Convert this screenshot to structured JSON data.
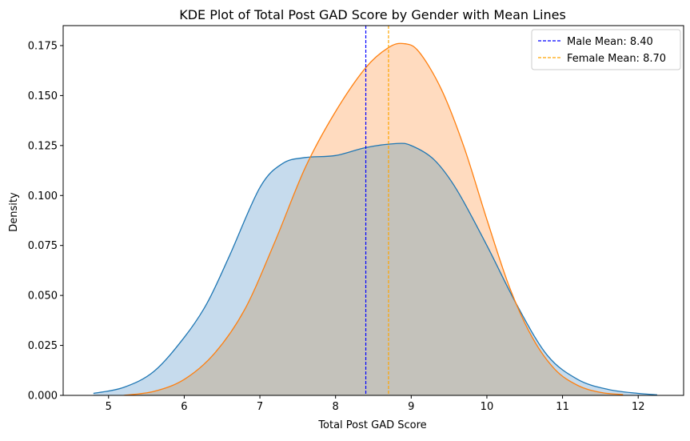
{
  "chart_data": {
    "type": "area",
    "title": "KDE Plot of Total Post GAD Score by Gender with Mean Lines",
    "xlabel": "Total Post GAD Score",
    "ylabel": "Density",
    "xlim": [
      4.4,
      12.6
    ],
    "ylim": [
      0,
      0.185
    ],
    "xticks": [
      5,
      6,
      7,
      8,
      9,
      10,
      11,
      12
    ],
    "yticks": [
      0.0,
      0.025,
      0.05,
      0.075,
      0.1,
      0.125,
      0.15,
      0.175
    ],
    "ytick_labels": [
      "0.000",
      "0.025",
      "0.050",
      "0.075",
      "0.100",
      "0.125",
      "0.150",
      "0.175"
    ],
    "grid": false,
    "legend_position": "top-right",
    "series": [
      {
        "key": "male",
        "color": "#1f77b4",
        "fill": "#c6dbed",
        "x": [
          4.8,
          5.2,
          5.6,
          6.0,
          6.3,
          6.6,
          7.0,
          7.3,
          7.6,
          8.0,
          8.4,
          8.8,
          9.0,
          9.3,
          9.6,
          10.0,
          10.4,
          10.8,
          11.2,
          11.6,
          12.0,
          12.25
        ],
        "y": [
          0.001,
          0.004,
          0.012,
          0.029,
          0.046,
          0.07,
          0.104,
          0.116,
          0.119,
          0.12,
          0.124,
          0.126,
          0.125,
          0.118,
          0.103,
          0.075,
          0.045,
          0.02,
          0.008,
          0.003,
          0.001,
          0.0003
        ]
      },
      {
        "key": "female",
        "color": "#ff7f0e",
        "fill": "#ffdbbf",
        "x": [
          5.2,
          5.6,
          6.0,
          6.4,
          6.8,
          7.2,
          7.6,
          8.0,
          8.4,
          8.7,
          8.9,
          9.1,
          9.4,
          9.7,
          10.0,
          10.3,
          10.6,
          10.9,
          11.2,
          11.5,
          11.8
        ],
        "y": [
          0.0,
          0.002,
          0.008,
          0.021,
          0.043,
          0.077,
          0.114,
          0.142,
          0.164,
          0.174,
          0.176,
          0.172,
          0.153,
          0.124,
          0.088,
          0.054,
          0.029,
          0.013,
          0.005,
          0.0015,
          0.0004
        ]
      }
    ],
    "overlap_fill": "#c4c2bb",
    "mean_lines": [
      {
        "label": "Male Mean: 8.40",
        "x": 8.4,
        "color": "#0000ff"
      },
      {
        "label": "Female Mean: 8.70",
        "x": 8.7,
        "color": "#ffa500"
      }
    ]
  }
}
